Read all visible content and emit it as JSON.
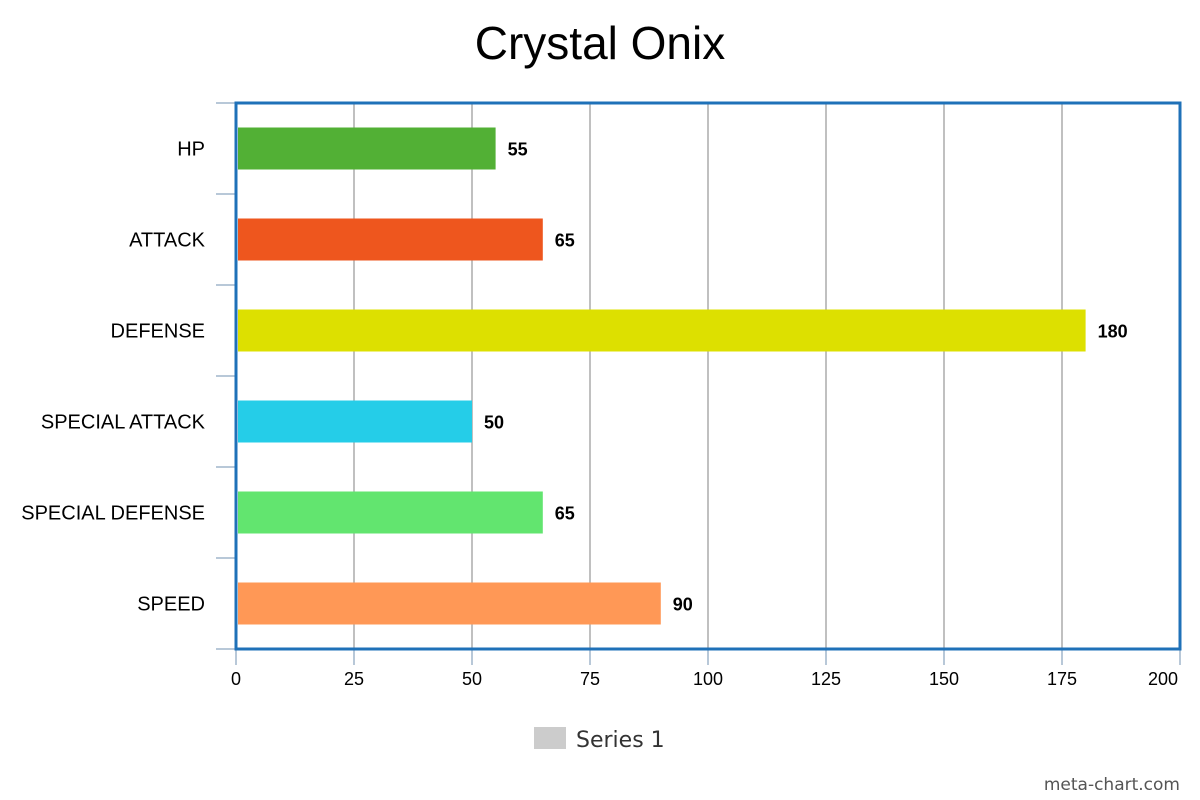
{
  "chart_data": {
    "type": "bar",
    "orientation": "horizontal",
    "title": "Crystal Onix",
    "categories": [
      "HP",
      "ATTACK",
      "DEFENSE",
      "SPECIAL ATTACK",
      "SPECIAL DEFENSE",
      "SPEED"
    ],
    "series": [
      {
        "name": "Series 1",
        "values": [
          55,
          65,
          180,
          50,
          65,
          90
        ],
        "colors": [
          "#52b035",
          "#ee561e",
          "#dde000",
          "#25cde8",
          "#62e56f",
          "#ff9856"
        ]
      }
    ],
    "xlim": [
      0,
      200
    ],
    "x_ticks": [
      0,
      25,
      50,
      75,
      100,
      125,
      150,
      175,
      200
    ],
    "grid": "vertical",
    "legend_position": "bottom",
    "legend_swatch_color": "#cccccc",
    "frame_color": "#1f71b8"
  },
  "watermark": "meta-chart.com"
}
